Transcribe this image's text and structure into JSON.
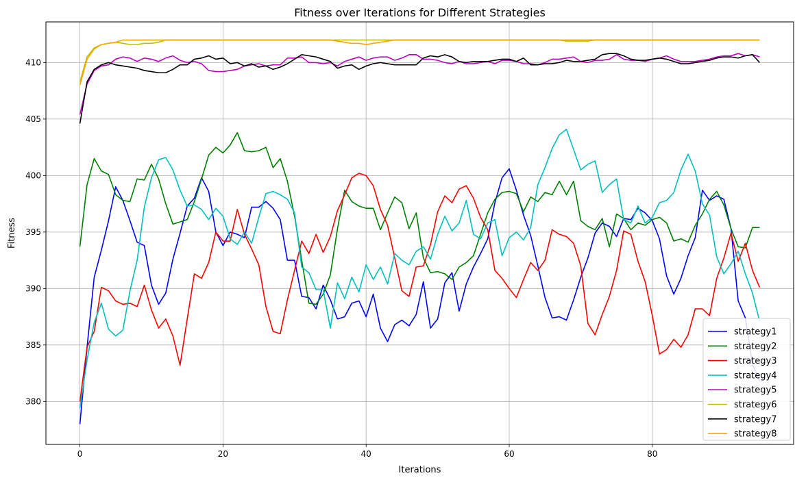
{
  "chart_data": {
    "type": "line",
    "title": "Fitness over Iterations for Different Strategies",
    "xlabel": "Iterations",
    "ylabel": "Fitness",
    "xlim": [
      -4.75,
      99.75
    ],
    "ylim": [
      376.2,
      413.6
    ],
    "xticks": [
      0,
      20,
      40,
      60,
      80
    ],
    "yticks": [
      380,
      385,
      390,
      395,
      400,
      405,
      410
    ],
    "grid": true,
    "legend_position": "lower-right",
    "x_start": 0,
    "x_step": 1,
    "series": [
      {
        "name": "strategy1",
        "color": "#0000ff",
        "values": [
          378.0,
          384.8,
          391.0,
          393.4,
          396.0,
          399.0,
          397.8,
          396.0,
          394.1,
          393.8,
          390.3,
          388.6,
          389.6,
          392.6,
          394.9,
          397.3,
          398.0,
          399.8,
          398.6,
          395.0,
          393.8,
          395.0,
          394.8,
          394.5,
          397.2,
          397.2,
          397.7,
          397.1,
          396.1,
          392.5,
          392.5,
          389.3,
          389.2,
          388.2,
          390.3,
          389.0,
          387.3,
          387.5,
          388.7,
          388.9,
          387.5,
          389.5,
          386.5,
          385.3,
          386.8,
          387.2,
          386.7,
          387.7,
          390.6,
          386.5,
          387.3,
          390.5,
          391.4,
          388.0,
          390.4,
          391.9,
          393.1,
          394.4,
          397.6,
          399.8,
          400.6,
          398.7,
          396.5,
          394.7,
          392.0,
          389.2,
          387.4,
          387.5,
          387.2,
          389.0,
          391.0,
          392.7,
          394.9,
          395.8,
          395.5,
          394.6,
          396.2,
          396.1,
          397.1,
          396.7,
          396.0,
          394.4,
          391.1,
          389.5,
          390.9,
          392.9,
          394.5,
          398.7,
          397.8,
          398.2,
          397.9,
          395.3,
          388.9,
          387.4,
          383.3,
          381.8
        ]
      },
      {
        "name": "strategy2",
        "color": "#008000",
        "values": [
          393.7,
          399.2,
          401.5,
          400.4,
          400.1,
          398.3,
          397.8,
          397.7,
          399.7,
          399.6,
          401.0,
          399.7,
          397.5,
          395.7,
          395.9,
          396.1,
          397.7,
          399.7,
          401.8,
          402.5,
          402.0,
          402.7,
          403.8,
          402.2,
          402.1,
          402.2,
          402.5,
          400.7,
          401.5,
          399.5,
          396.4,
          392.5,
          388.7,
          388.6,
          389.5,
          391.2,
          395.3,
          398.7,
          397.7,
          397.3,
          397.1,
          397.1,
          395.2,
          396.7,
          398.1,
          397.6,
          395.3,
          396.7,
          392.7,
          391.4,
          391.5,
          391.3,
          390.8,
          391.9,
          392.3,
          392.9,
          394.8,
          396.7,
          397.9,
          398.5,
          398.6,
          398.4,
          396.8,
          398.1,
          397.7,
          398.5,
          398.3,
          399.5,
          398.3,
          399.5,
          396.0,
          395.5,
          395.2,
          396.2,
          393.7,
          396.6,
          396.2,
          395.2,
          395.8,
          395.6,
          396.1,
          396.3,
          395.8,
          394.2,
          394.4,
          394.1,
          395.6,
          396.6,
          397.9,
          398.6,
          397.4,
          395.3,
          393.7,
          393.6,
          395.4,
          395.4
        ]
      },
      {
        "name": "strategy3",
        "color": "#ff0000",
        "values": [
          380.0,
          384.8,
          386.2,
          390.1,
          389.8,
          388.9,
          388.6,
          388.7,
          388.4,
          390.3,
          388.1,
          386.5,
          387.3,
          385.8,
          383.2,
          387.3,
          391.3,
          390.9,
          392.3,
          395.0,
          394.2,
          394.2,
          397.0,
          394.8,
          393.5,
          392.1,
          388.4,
          386.2,
          386.0,
          389.0,
          391.6,
          394.2,
          393.1,
          394.8,
          393.2,
          394.6,
          396.9,
          398.3,
          399.8,
          400.2,
          400.0,
          399.1,
          397.0,
          395.6,
          392.7,
          389.8,
          389.3,
          391.9,
          392.0,
          393.9,
          396.8,
          398.2,
          397.6,
          398.8,
          399.1,
          398.0,
          396.3,
          395.2,
          391.6,
          390.9,
          390.0,
          389.2,
          390.8,
          392.3,
          391.6,
          392.5,
          395.2,
          394.8,
          394.6,
          394.0,
          392.0,
          386.9,
          385.9,
          387.7,
          389.3,
          391.6,
          395.1,
          394.8,
          392.4,
          390.6,
          387.6,
          384.2,
          384.6,
          385.5,
          384.8,
          385.9,
          388.2,
          388.2,
          387.6,
          390.9,
          392.7,
          394.9,
          392.4,
          394.0,
          391.6,
          390.1
        ]
      },
      {
        "name": "strategy4",
        "color": "#00bfbf",
        "values": [
          379.4,
          383.7,
          387.0,
          388.7,
          386.4,
          385.8,
          386.3,
          389.8,
          392.5,
          397.2,
          399.8,
          401.4,
          401.6,
          400.5,
          398.7,
          397.3,
          397.4,
          397.0,
          396.1,
          397.1,
          396.4,
          394.4,
          393.9,
          395.0,
          394.0,
          396.3,
          398.4,
          398.6,
          398.3,
          397.9,
          396.7,
          391.9,
          391.4,
          389.9,
          389.9,
          386.5,
          390.5,
          389.1,
          391.0,
          389.7,
          392.1,
          390.8,
          391.9,
          390.4,
          393.1,
          392.5,
          392.1,
          393.3,
          393.7,
          392.6,
          394.8,
          396.4,
          395.1,
          395.8,
          397.8,
          394.8,
          394.4,
          395.8,
          396.1,
          392.9,
          394.5,
          395.0,
          394.3,
          395.4,
          399.2,
          400.7,
          402.4,
          403.6,
          404.1,
          402.3,
          400.5,
          401.0,
          401.3,
          398.5,
          399.2,
          399.7,
          396.1,
          395.8,
          397.3,
          395.8,
          396.3,
          397.6,
          397.8,
          398.5,
          400.5,
          401.9,
          400.4,
          397.5,
          396.5,
          392.8,
          391.3,
          392.2,
          393.3,
          391.3,
          389.6,
          387.1
        ]
      },
      {
        "name": "strategy5",
        "color": "#bf00bf",
        "values": [
          405.4,
          408.1,
          409.3,
          409.7,
          409.8,
          410.3,
          410.5,
          410.4,
          410.1,
          410.4,
          410.3,
          410.1,
          410.4,
          410.6,
          410.2,
          410.0,
          410.1,
          409.9,
          409.3,
          409.2,
          409.2,
          409.3,
          409.4,
          409.7,
          409.8,
          409.9,
          409.7,
          409.8,
          409.8,
          410.4,
          410.4,
          410.5,
          410.0,
          410.0,
          409.9,
          410.0,
          409.7,
          410.1,
          410.3,
          410.5,
          410.2,
          410.4,
          410.5,
          410.5,
          410.2,
          410.4,
          410.7,
          410.7,
          410.3,
          410.3,
          410.2,
          410.0,
          409.9,
          410.1,
          409.9,
          409.9,
          410.0,
          410.1,
          409.9,
          410.2,
          410.2,
          410.1,
          409.9,
          409.9,
          409.8,
          410.0,
          410.3,
          410.3,
          410.4,
          410.5,
          410.1,
          410.0,
          410.2,
          410.2,
          410.3,
          410.7,
          410.3,
          410.2,
          410.2,
          410.1,
          410.3,
          410.4,
          410.6,
          410.3,
          410.1,
          410.1,
          410.1,
          410.2,
          410.3,
          410.5,
          410.6,
          410.6,
          410.8,
          410.6,
          410.7,
          410.5
        ]
      },
      {
        "name": "strategy6",
        "color": "#bfbf00",
        "values": [
          408.3,
          410.5,
          411.3,
          411.6,
          411.7,
          411.8,
          411.7,
          411.6,
          411.6,
          411.7,
          411.7,
          411.8,
          412.0,
          412.0,
          412.0,
          412.0,
          412.0,
          412.0,
          412.0,
          412.0,
          412.0,
          412.0,
          412.0,
          412.0,
          412.0,
          412.0,
          412.0,
          412.0,
          412.0,
          412.0,
          412.0,
          412.0,
          412.0,
          412.0,
          412.0,
          412.0,
          412.0,
          412.0,
          412.0,
          412.0,
          412.0,
          412.0,
          412.0,
          412.0,
          412.0,
          412.0,
          412.0,
          412.0,
          412.0,
          412.0,
          412.0,
          412.0,
          412.0,
          412.0,
          412.0,
          412.0,
          412.0,
          412.0,
          412.0,
          412.0,
          412.0,
          412.0,
          412.0,
          412.0,
          412.0,
          412.0,
          412.0,
          412.0,
          411.9,
          411.9,
          411.9,
          411.9,
          412.0,
          412.0,
          412.0,
          412.0,
          412.0,
          412.0,
          412.0,
          412.0,
          412.0,
          412.0,
          412.0,
          412.0,
          412.0,
          412.0,
          412.0,
          412.0,
          412.0,
          412.0,
          412.0,
          412.0,
          412.0,
          412.0,
          412.0,
          412.0
        ]
      },
      {
        "name": "strategy7",
        "color": "#000000",
        "values": [
          404.6,
          408.3,
          409.4,
          409.8,
          410.0,
          409.8,
          409.7,
          409.6,
          409.5,
          409.3,
          409.2,
          409.1,
          409.1,
          409.4,
          409.8,
          409.8,
          410.3,
          410.4,
          410.6,
          410.3,
          410.4,
          409.9,
          410.0,
          409.7,
          409.9,
          409.6,
          409.7,
          409.4,
          409.6,
          409.9,
          410.3,
          410.7,
          410.6,
          410.5,
          410.3,
          410.1,
          409.5,
          409.7,
          409.8,
          409.4,
          409.7,
          409.9,
          410.0,
          409.9,
          409.8,
          409.8,
          409.8,
          409.8,
          410.4,
          410.6,
          410.5,
          410.7,
          410.5,
          410.1,
          410.0,
          410.1,
          410.1,
          410.1,
          410.2,
          410.3,
          410.3,
          410.1,
          410.4,
          409.8,
          409.8,
          409.9,
          409.9,
          410.0,
          410.2,
          410.1,
          410.1,
          410.2,
          410.3,
          410.7,
          410.8,
          410.8,
          410.6,
          410.3,
          410.2,
          410.2,
          410.3,
          410.4,
          410.3,
          410.1,
          409.9,
          409.9,
          410.0,
          410.1,
          410.2,
          410.4,
          410.5,
          410.5,
          410.4,
          410.6,
          410.7,
          410.0
        ]
      },
      {
        "name": "strategy8",
        "color": "#ffa500",
        "values": [
          408.0,
          410.3,
          411.2,
          411.6,
          411.7,
          411.8,
          412.0,
          412.0,
          412.0,
          412.0,
          412.0,
          412.0,
          412.0,
          412.0,
          412.0,
          412.0,
          412.0,
          412.0,
          412.0,
          412.0,
          412.0,
          412.0,
          412.0,
          412.0,
          412.0,
          412.0,
          412.0,
          412.0,
          412.0,
          412.0,
          412.0,
          412.0,
          412.0,
          412.0,
          412.0,
          412.0,
          411.9,
          411.8,
          411.7,
          411.7,
          411.6,
          411.7,
          411.8,
          411.9,
          412.0,
          412.0,
          412.0,
          412.0,
          412.0,
          412.0,
          412.0,
          412.0,
          412.0,
          412.0,
          412.0,
          412.0,
          412.0,
          412.0,
          412.0,
          412.0,
          412.0,
          412.0,
          412.0,
          412.0,
          412.0,
          412.0,
          412.0,
          412.0,
          412.0,
          412.0,
          412.0,
          412.0,
          412.0,
          412.0,
          412.0,
          412.0,
          412.0,
          412.0,
          412.0,
          412.0,
          412.0,
          412.0,
          412.0,
          412.0,
          412.0,
          412.0,
          412.0,
          412.0,
          412.0,
          412.0,
          412.0,
          412.0,
          412.0,
          412.0,
          412.0,
          412.0
        ]
      }
    ]
  }
}
